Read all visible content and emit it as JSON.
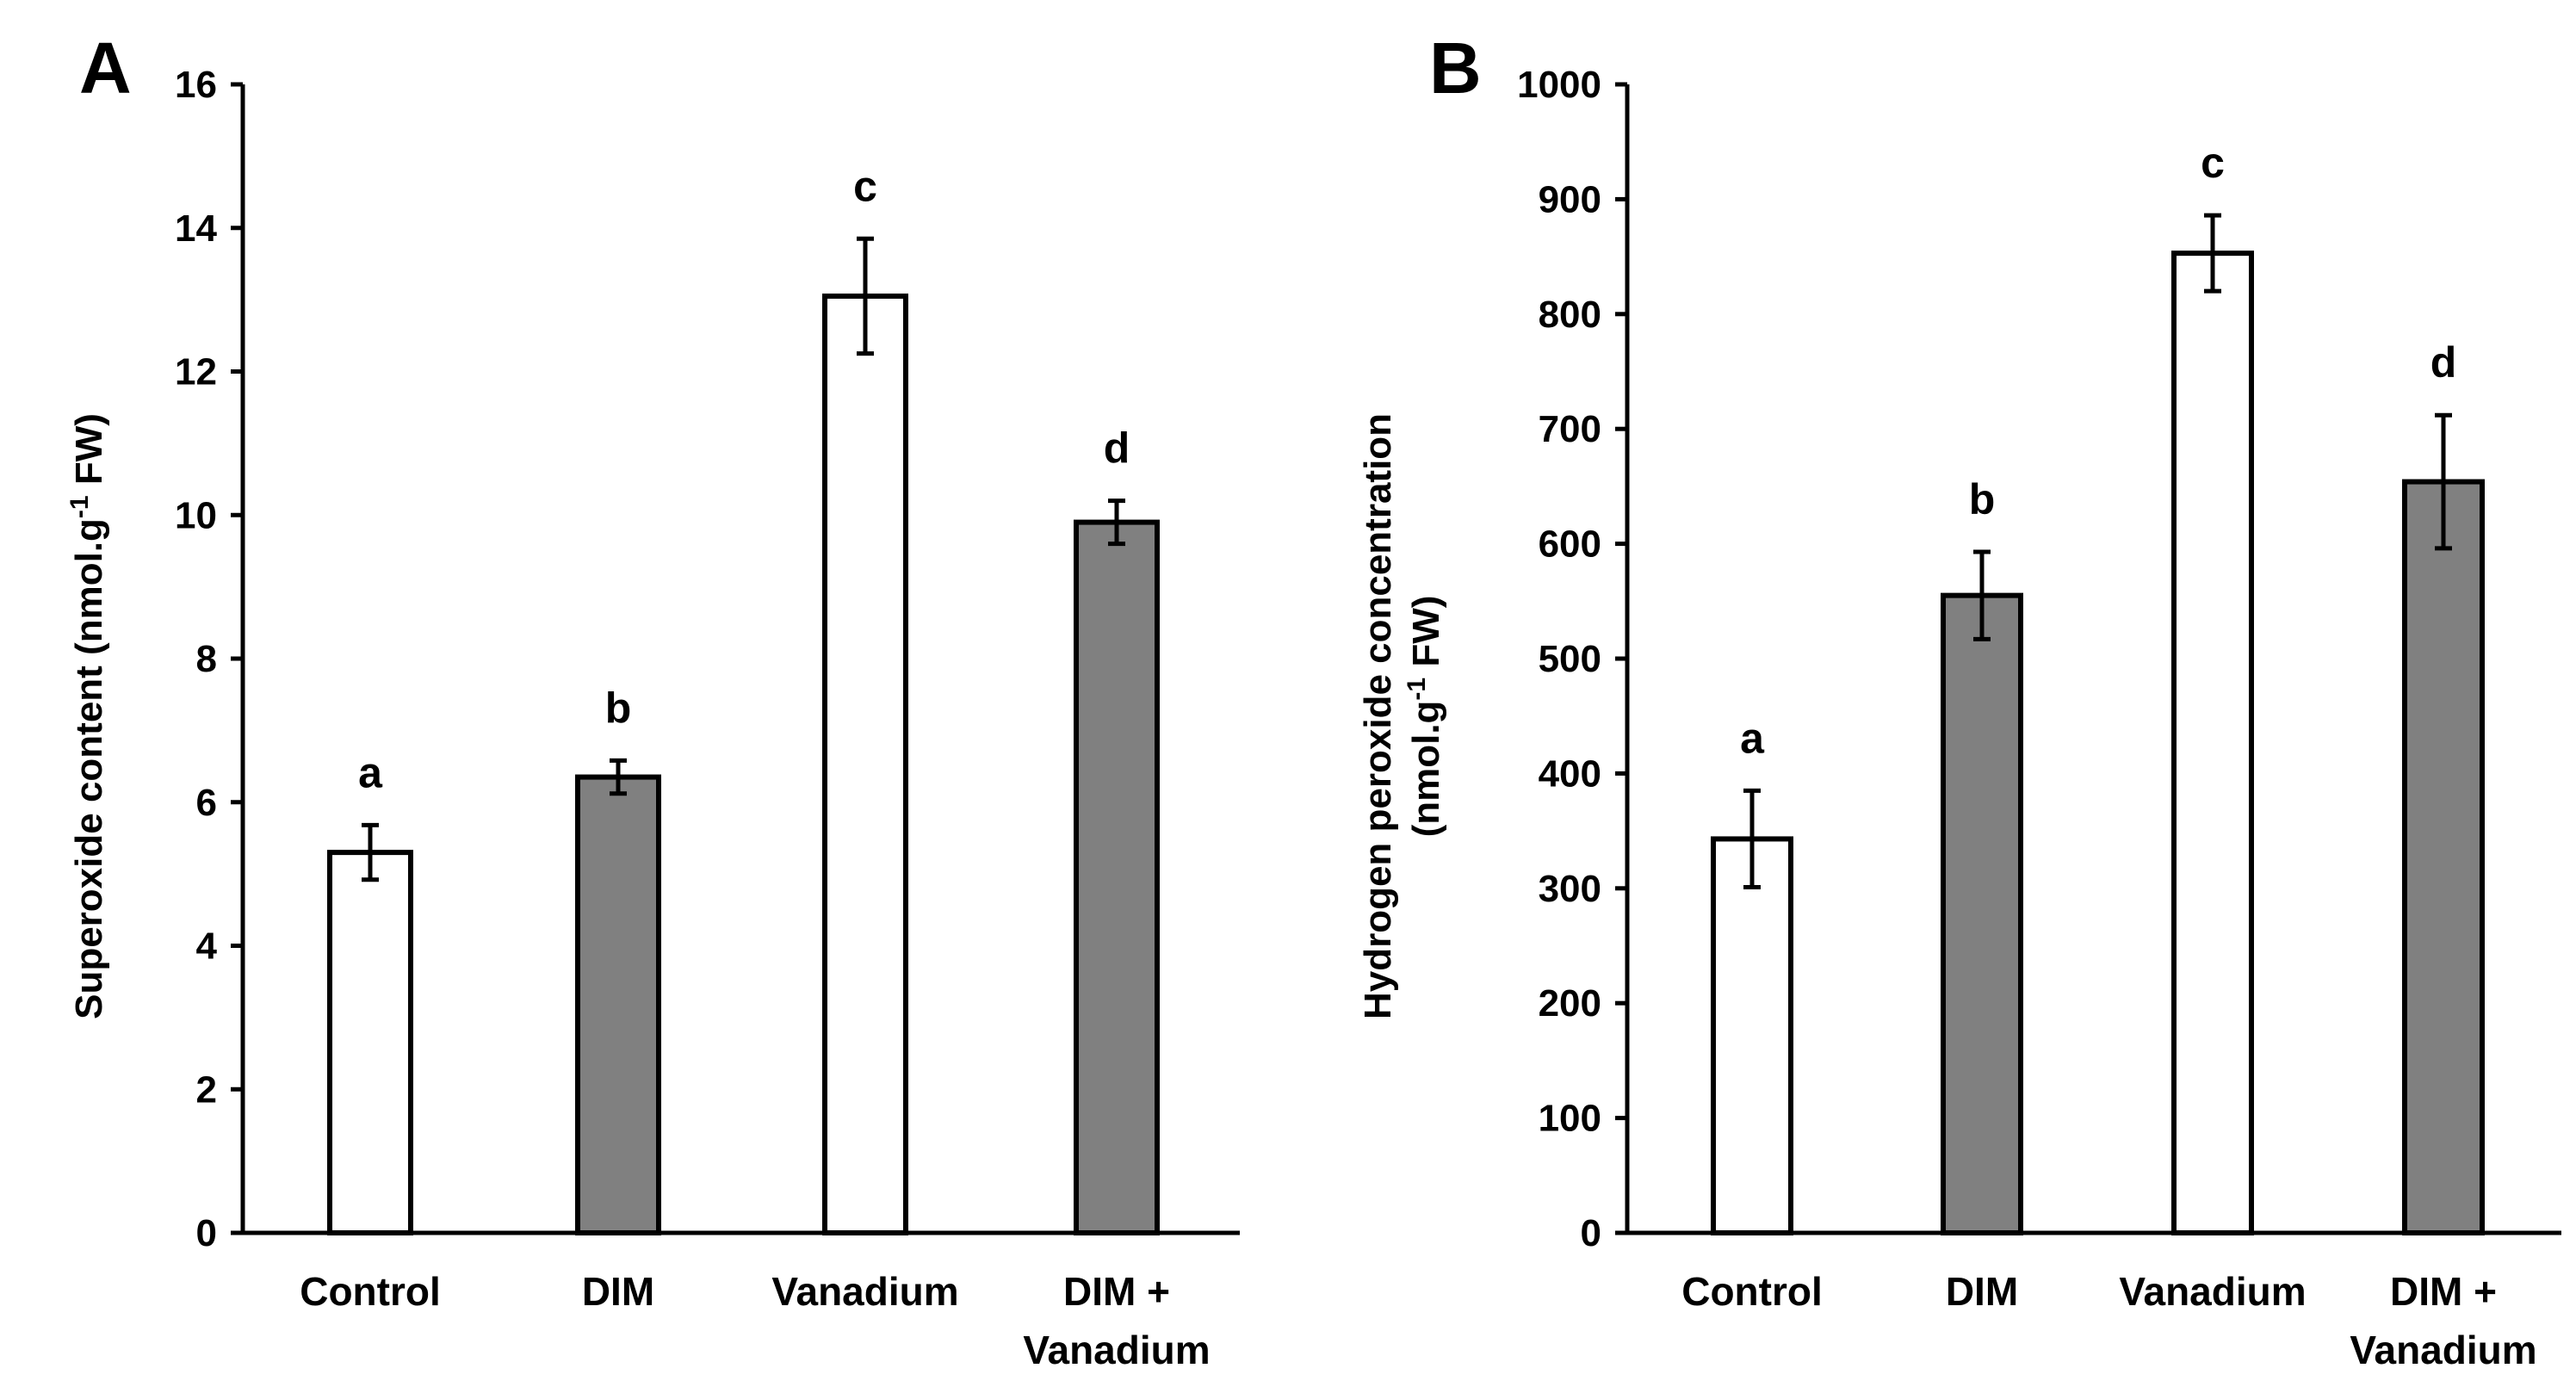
{
  "chart_data": [
    {
      "type": "bar",
      "panel": "A",
      "categories": [
        "Control",
        "DIM",
        "Vanadium",
        "DIM + Vanadium"
      ],
      "category_lines": [
        [
          "Control"
        ],
        [
          "DIM"
        ],
        [
          "Vanadium"
        ],
        [
          "DIM +",
          "Vanadium"
        ]
      ],
      "values": [
        5.3,
        6.35,
        13.05,
        9.9
      ],
      "errors": [
        0.38,
        0.23,
        0.8,
        0.3
      ],
      "significance": [
        "a",
        "b",
        "c",
        "d"
      ],
      "fills": [
        "#ffffff",
        "#808080",
        "#ffffff",
        "#808080"
      ],
      "ylim": [
        0,
        16
      ],
      "yticks": [
        0,
        2,
        4,
        6,
        8,
        10,
        12,
        14,
        16
      ],
      "ylabel": {
        "main": "Superoxide content (nmol.g",
        "sup": "-1",
        "tail": " FW)"
      }
    },
    {
      "type": "bar",
      "panel": "B",
      "categories": [
        "Control",
        "DIM",
        "Vanadium",
        "DIM + Vanadium"
      ],
      "category_lines": [
        [
          "Control"
        ],
        [
          "DIM"
        ],
        [
          "Vanadium"
        ],
        [
          "DIM +",
          "Vanadium"
        ]
      ],
      "values": [
        343,
        555,
        853,
        654
      ],
      "errors": [
        42,
        38,
        33,
        58
      ],
      "significance": [
        "a",
        "b",
        "c",
        "d"
      ],
      "fills": [
        "#ffffff",
        "#808080",
        "#ffffff",
        "#808080"
      ],
      "ylim": [
        0,
        1000
      ],
      "yticks": [
        0,
        100,
        200,
        300,
        400,
        500,
        600,
        700,
        800,
        900,
        1000
      ],
      "ylabel": {
        "line1": "Hydrogen peroxide concentration",
        "main": "(nmol.g",
        "sup": "-1",
        "tail": " FW)"
      }
    }
  ]
}
